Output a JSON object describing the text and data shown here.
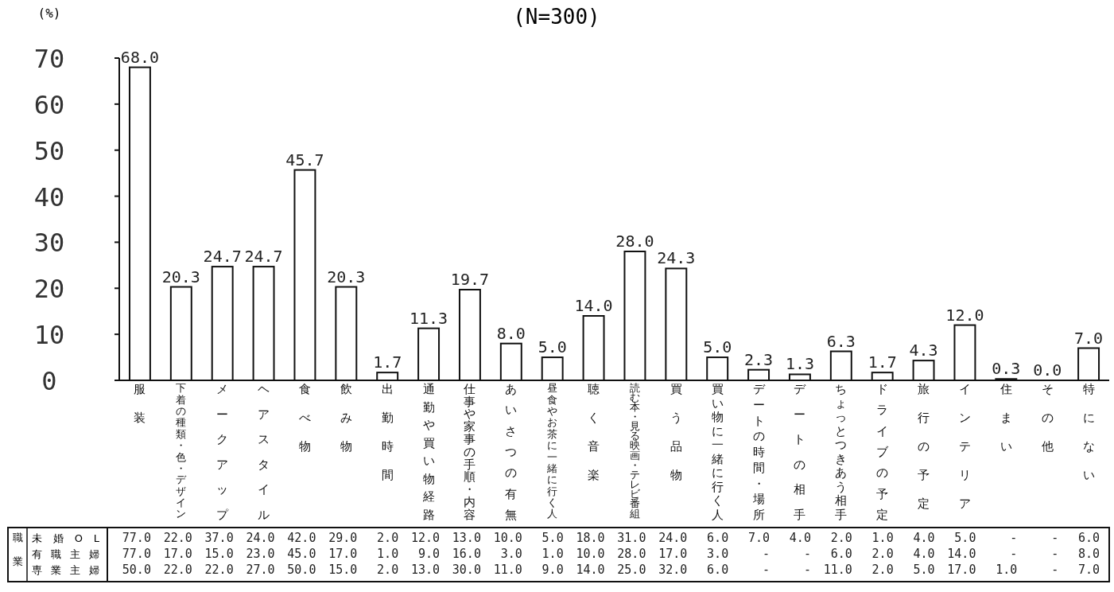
{
  "chart_data": [
    {
      "type": "bar",
      "title": "(N=300)",
      "ylabel": "(%)",
      "categories": [
        "服装",
        "下着の種類・色・デザイン",
        "メークアップ",
        "ヘアスタイル",
        "食べ物",
        "飲み物",
        "出勤時間",
        "通勤や買い物経路",
        "仕事や家事の手順・内容",
        "あいさつの有無",
        "昼食やお茶に一緒に行く人",
        "聴く音楽",
        "読む本・見る映画・テレビ番組",
        "買う品物",
        "買い物に一緒に行く人",
        "デートの時間・場所",
        "デートの相手",
        "ちょっとつきあう相手",
        "ドライブの予定",
        "旅行の予定",
        "インテリア",
        "住まい",
        "その他",
        "特にない"
      ],
      "color": "#ffffff",
      "values": [
        68.0,
        20.3,
        24.7,
        24.7,
        45.7,
        20.3,
        1.7,
        11.3,
        19.7,
        8.0,
        5.0,
        14.0,
        28.0,
        24.3,
        5.0,
        2.3,
        1.3,
        6.3,
        1.7,
        4.3,
        12.0,
        0.3,
        0.0,
        7.0
      ],
      "value_labels": [
        "68.0",
        "20.3",
        "24.7",
        "24.7",
        "45.7",
        "20.3",
        "1.7",
        "11.3",
        "19.7",
        "8.0",
        "5.0",
        "14.0",
        "28.0",
        "24.3",
        "5.0",
        "2.3",
        "1.3",
        "6.3",
        "1.7",
        "4.3",
        "12.0",
        "0.3",
        "0.0",
        "7.0"
      ],
      "ylim": [
        0,
        70
      ],
      "yticks": [
        0,
        10,
        20,
        30,
        40,
        50,
        60,
        70
      ],
      "grid": false
    },
    {
      "type": "other",
      "annotations": [
        "職業",
        "未婚OL",
        "77.0",
        "22.0",
        "37.0",
        "24.0",
        "42.0",
        "29.0",
        "2.0",
        "12.0",
        "13.0",
        "10.0",
        "5.0",
        "18.0",
        "31.0",
        "24.0",
        "6.0",
        "7.0",
        "4.0",
        "2.0",
        "1.0",
        "4.0",
        "5.0",
        "-",
        "-",
        "6.0",
        "有職主婦",
        "77.0",
        "17.0",
        "15.0",
        "23.0",
        "45.0",
        "17.0",
        "1.0",
        "9.0",
        "16.0",
        "3.0",
        "1.0",
        "10.0",
        "28.0",
        "17.0",
        "3.0",
        "-",
        "-",
        "6.0",
        "2.0",
        "4.0",
        "14.0",
        "-",
        "-",
        "8.0",
        "専業主婦",
        "50.0",
        "22.0",
        "22.0",
        "27.0",
        "50.0",
        "15.0",
        "2.0",
        "13.0",
        "30.0",
        "11.0",
        "9.0",
        "14.0",
        "25.0",
        "32.0",
        "6.0",
        "-",
        "-",
        "11.0",
        "2.0",
        "5.0",
        "17.0",
        "1.0",
        "-",
        "7.0"
      ]
    }
  ]
}
